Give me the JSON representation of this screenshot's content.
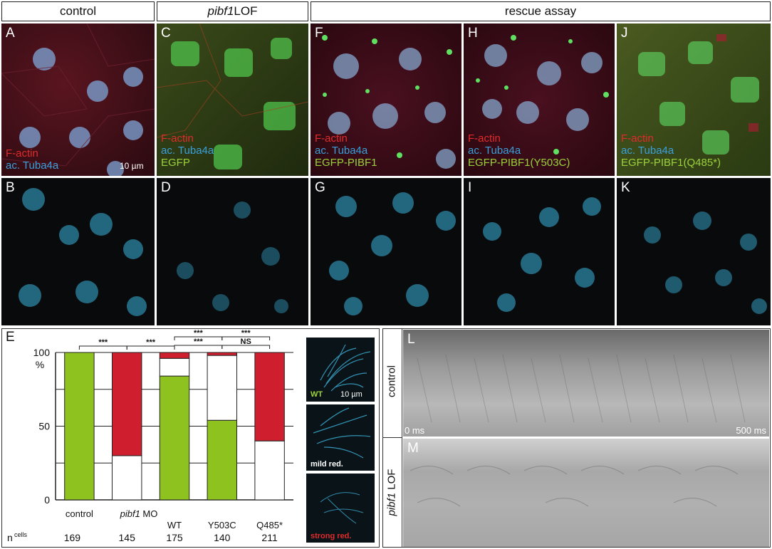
{
  "headers": {
    "control": "control",
    "lof_gene": "pibf1",
    "lof_suffix": " LOF",
    "rescue": "rescue assay"
  },
  "panels": {
    "A": {
      "label": "A",
      "legend": [
        "F-actin",
        "ac. Tuba4a"
      ],
      "scalebar": "10 µm"
    },
    "C": {
      "label": "C",
      "legend": [
        "F-actin",
        "ac. Tuba4a",
        "EGFP"
      ]
    },
    "F": {
      "label": "F",
      "legend": [
        "F-actin",
        "ac. Tuba4a",
        "EGFP-PIBF1"
      ]
    },
    "H": {
      "label": "H",
      "legend": [
        "F-actin",
        "ac. Tuba4a",
        "EGFP-PIBF1(Y503C)"
      ]
    },
    "J": {
      "label": "J",
      "legend": [
        "F-actin",
        "ac. Tuba4a",
        "EGFP-PIBF1(Q485*)"
      ]
    },
    "B": {
      "label": "B"
    },
    "D": {
      "label": "D"
    },
    "G": {
      "label": "G"
    },
    "I": {
      "label": "I"
    },
    "K": {
      "label": "K"
    },
    "E": {
      "label": "E"
    },
    "L": {
      "label": "L",
      "side": "control",
      "t0": "0 ms",
      "t1": "500 ms"
    },
    "M": {
      "label": "M",
      "side_gene": "pibf1",
      "side_suffix": " LOF"
    }
  },
  "insets": [
    {
      "label": "WT",
      "scalebar": "10 µm",
      "color": "#9bd23b"
    },
    {
      "label": "mild red.",
      "color": "#ffffff"
    },
    {
      "label": "strong red.",
      "color": "#e12b2b"
    }
  ],
  "colors": {
    "wt": "#8dc21f",
    "mild": "#ffffff",
    "strong": "#cf1f2e"
  },
  "chart_data": {
    "type": "bar",
    "stacked": true,
    "ylabel": "%",
    "ylim": [
      0,
      100
    ],
    "yticks": [
      "0",
      "50",
      "100"
    ],
    "categories": [
      "control",
      "pibf1 MO",
      "WT",
      "Y503C",
      "Q485*"
    ],
    "category_display": [
      "control",
      "",
      "WT",
      "Y503C",
      "Q485*"
    ],
    "mo_gene": "pibf1",
    "mo_suffix": " MO",
    "series": [
      {
        "name": "WT",
        "values": [
          100,
          0,
          84,
          54,
          0
        ]
      },
      {
        "name": "mild red.",
        "values": [
          0,
          30,
          12,
          44,
          40
        ]
      },
      {
        "name": "strong red.",
        "values": [
          0,
          70,
          4,
          2,
          60
        ]
      }
    ],
    "n_label": "n",
    "n_sup": "cells",
    "n": [
      "169",
      "145",
      "175",
      "140",
      "211"
    ],
    "significance": [
      "***",
      "***",
      "***",
      "***",
      "***",
      "NS"
    ]
  }
}
